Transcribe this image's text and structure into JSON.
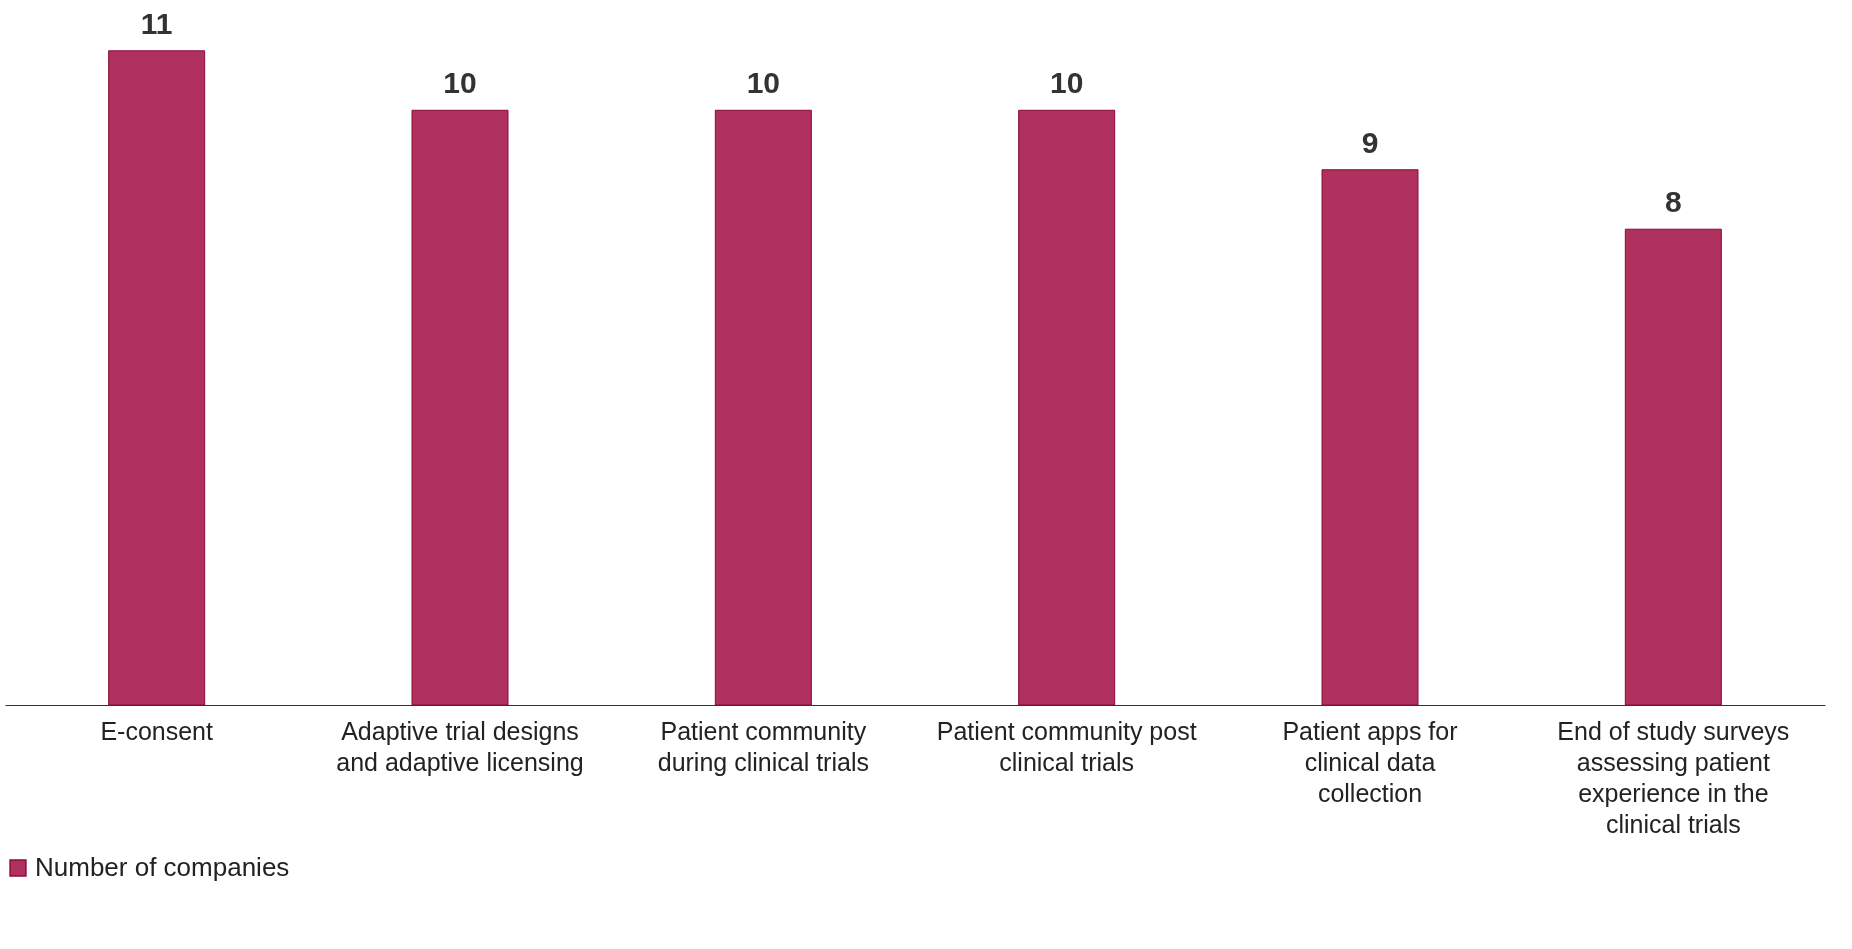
{
  "chart_data": {
    "type": "bar",
    "categories": [
      "E-consent",
      "Adaptive trial designs and adaptive licensing",
      "Patient community during clinical trials",
      "Patient community post clinical trials",
      "Patient apps for clinical data collection",
      "End of study surveys assessing patient experience in the clinical trials"
    ],
    "series": [
      {
        "name": "Number of companies",
        "color": "#b0305e",
        "values": [
          11,
          10,
          10,
          10,
          9,
          8
        ]
      }
    ],
    "data_labels": true,
    "legend": "bottom",
    "grid": false
  }
}
